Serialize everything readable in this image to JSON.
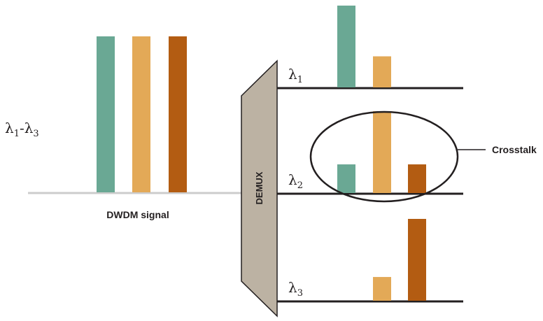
{
  "colors": {
    "green": "#6aa894",
    "orange": "#e3a957",
    "rust": "#b35c12",
    "line": "#231f20",
    "baseline": "#cccccc",
    "demux": "#bcb2a3"
  },
  "input": {
    "label_main": "λ",
    "label_sub1": "1",
    "label_dash": "-λ",
    "label_sub3": "3",
    "caption": "DWDM signal",
    "channels": [
      {
        "name": "λ1",
        "level": 1.0,
        "color": "green"
      },
      {
        "name": "λ2",
        "level": 1.0,
        "color": "orange"
      },
      {
        "name": "λ3",
        "level": 1.0,
        "color": "rust"
      }
    ]
  },
  "demux": {
    "label": "DEMUX"
  },
  "outputs": [
    {
      "symbol": "λ",
      "sub": "1",
      "bars": [
        {
          "channel": "λ1",
          "level": 1.0,
          "color": "green"
        },
        {
          "channel": "λ2",
          "level": 0.38,
          "color": "orange"
        }
      ]
    },
    {
      "symbol": "λ",
      "sub": "2",
      "bars": [
        {
          "channel": "λ1",
          "level": 0.35,
          "color": "green"
        },
        {
          "channel": "λ2",
          "level": 1.0,
          "color": "orange"
        },
        {
          "channel": "λ3",
          "level": 0.35,
          "color": "rust"
        }
      ]
    },
    {
      "symbol": "λ",
      "sub": "3",
      "bars": [
        {
          "channel": "λ2",
          "level": 0.29,
          "color": "orange"
        },
        {
          "channel": "λ3",
          "level": 1.0,
          "color": "rust"
        }
      ]
    }
  ],
  "crosstalk": {
    "label": "Crosstalk"
  }
}
